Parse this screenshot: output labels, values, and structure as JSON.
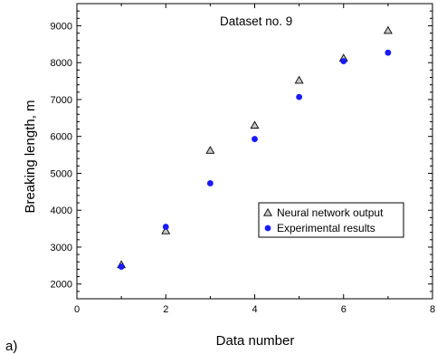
{
  "chart_data": {
    "type": "scatter",
    "title": "",
    "annotation": "Dataset no. 9",
    "panel_label": "a)",
    "xlabel": "Data number",
    "ylabel": "Breaking length, m",
    "xlim": [
      0,
      8
    ],
    "ylim": [
      1600,
      9600
    ],
    "x_ticks": [
      0,
      2,
      4,
      6,
      8
    ],
    "x_tick_labels": [
      "0",
      "2",
      "4",
      "6",
      "8"
    ],
    "y_ticks": [
      2000,
      3000,
      4000,
      5000,
      6000,
      7000,
      8000,
      9000
    ],
    "y_tick_labels": [
      "2000",
      "3000",
      "4000",
      "5000",
      "6000",
      "7000",
      "8000",
      "9000"
    ],
    "grid": false,
    "legend_position": "center-right",
    "series": [
      {
        "name": "Neural network output",
        "marker": "triangle-open",
        "color": "#000000",
        "x": [
          1,
          2,
          3,
          4,
          5,
          6,
          7
        ],
        "y": [
          2520,
          3440,
          5620,
          6300,
          7520,
          8120,
          8870
        ]
      },
      {
        "name": "Experimental results",
        "marker": "circle-filled",
        "color": "#1a1aff",
        "x": [
          1,
          2,
          3,
          4,
          5,
          6,
          7
        ],
        "y": [
          2470,
          3550,
          4730,
          5930,
          7070,
          8040,
          8270
        ]
      }
    ]
  }
}
